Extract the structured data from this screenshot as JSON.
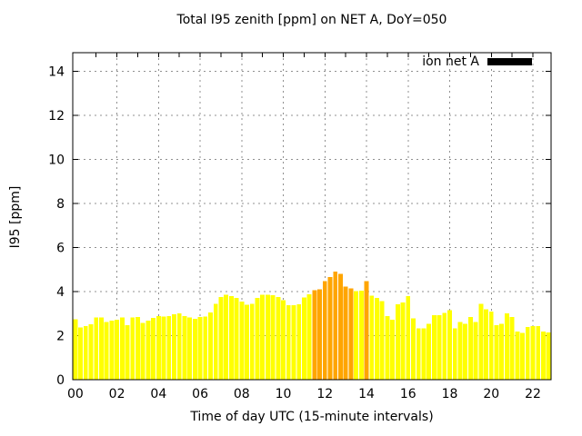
{
  "window": {
    "background": "#ffffff"
  },
  "chart_data": {
    "type": "bar",
    "title": "Total I95 zenith [ppm] on NET A, DoY=050",
    "xlabel": "Time of day UTC (15-minute intervals)",
    "ylabel": "I95 [ppm]",
    "ylim": [
      0,
      14.84
    ],
    "yticks": [
      0,
      2,
      4,
      6,
      8,
      10,
      12,
      14
    ],
    "xtick_hours": [
      0,
      2,
      4,
      6,
      8,
      10,
      12,
      14,
      16,
      18,
      20,
      22
    ],
    "xtick_labels": [
      "00",
      "02",
      "04",
      "06",
      "08",
      "10",
      "12",
      "14",
      "16",
      "18",
      "20",
      "22"
    ],
    "grid": "dashed-gray",
    "x_start": "00:00",
    "x_end": "22:45",
    "x_step_minutes": 15,
    "legend": {
      "label": "ion net A",
      "swatch_color": "#000000",
      "position": "top-right-inside"
    },
    "series": [
      {
        "name": "ion net A",
        "bar_color_default": "#ffff00",
        "bar_color_highlight": "#ffa500",
        "highlight_indices": [
          46,
          47,
          48,
          49,
          50,
          51,
          52,
          53,
          56
        ],
        "values": [
          2.75,
          2.37,
          2.44,
          2.51,
          2.82,
          2.82,
          2.61,
          2.68,
          2.72,
          2.82,
          2.47,
          2.82,
          2.85,
          2.57,
          2.68,
          2.8,
          2.89,
          2.86,
          2.89,
          2.96,
          3.0,
          2.89,
          2.82,
          2.77,
          2.85,
          2.86,
          3.05,
          3.45,
          3.75,
          3.85,
          3.8,
          3.7,
          3.55,
          3.4,
          3.45,
          3.7,
          3.85,
          3.85,
          3.84,
          3.75,
          3.6,
          3.39,
          3.39,
          3.43,
          3.74,
          3.88,
          4.06,
          4.1,
          4.48,
          4.65,
          4.9,
          4.8,
          4.22,
          4.14,
          4.01,
          4.03,
          4.47,
          3.82,
          3.7,
          3.57,
          2.89,
          2.72,
          3.42,
          3.51,
          3.79,
          2.78,
          2.33,
          2.33,
          2.54,
          2.92,
          2.92,
          3.03,
          3.15,
          2.33,
          2.61,
          2.54,
          2.85,
          2.61,
          3.44,
          3.19,
          3.1,
          2.47,
          2.54,
          3.0,
          2.85,
          2.19,
          2.12,
          2.4,
          2.43,
          2.43,
          2.19,
          2.15
        ]
      }
    ]
  },
  "colors": {
    "axis": "#000000",
    "grid": "#909090",
    "text": "#000000"
  }
}
